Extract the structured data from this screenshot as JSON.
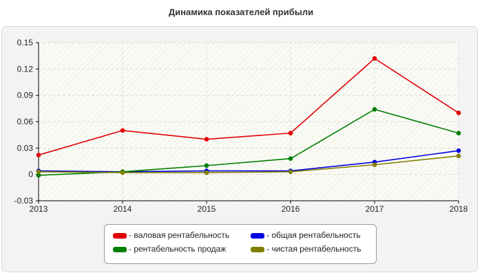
{
  "chart_data": {
    "type": "line",
    "title": "Динамика показателей прибыли",
    "xlabel": "",
    "ylabel": "",
    "categories": [
      "2013",
      "2014",
      "2015",
      "2016",
      "2017",
      "2018"
    ],
    "ylim": [
      -0.03,
      0.15
    ],
    "yticks": [
      "0.15",
      "0.12",
      "0.09",
      "0.06",
      "0.03",
      "0",
      "-0.03"
    ],
    "ytick_values": [
      0.15,
      0.12,
      0.09,
      0.06,
      0.03,
      0,
      -0.03
    ],
    "grid": true,
    "legend_position": "bottom",
    "series": [
      {
        "name": "- валовая рентабельность",
        "color": "#e00000",
        "values": [
          0.022,
          0.05,
          0.04,
          0.047,
          0.132,
          0.07
        ]
      },
      {
        "name": "- общая рентабельность",
        "color": "#0000e0",
        "values": [
          0.004,
          0.003,
          0.004,
          0.004,
          0.014,
          0.027
        ]
      },
      {
        "name": "- рентабельность продаж",
        "color": "#008000",
        "values": [
          -0.001,
          0.003,
          0.01,
          0.018,
          0.074,
          0.047
        ]
      },
      {
        "name": "- чистая рентабельность",
        "color": "#808000",
        "values": [
          0.003,
          0.002,
          0.002,
          0.003,
          0.011,
          0.021
        ]
      }
    ]
  }
}
